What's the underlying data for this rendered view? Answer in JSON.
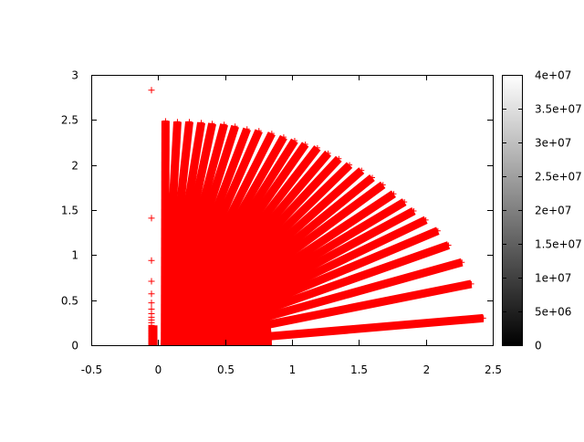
{
  "chart_data": {
    "type": "scatter",
    "title": "",
    "xlabel": "",
    "ylabel": "",
    "xlim": [
      -0.5,
      2.5
    ],
    "ylim": [
      0,
      3
    ],
    "grid": false,
    "marker": "plus",
    "series_color": "#ff0000",
    "x_ticks": [
      "-0.5",
      "0",
      "0.5",
      "1",
      "1.5",
      "2",
      "2.5"
    ],
    "x_tick_values": [
      -0.5,
      0,
      0.5,
      1,
      1.5,
      2,
      2.5
    ],
    "y_ticks": [
      "0",
      "0.5",
      "1",
      "1.5",
      "2",
      "2.5",
      "3"
    ],
    "y_tick_values": [
      0,
      0.5,
      1,
      1.5,
      2,
      2.5,
      3
    ],
    "fan_origin": [
      0.05,
      0
    ],
    "dense_core_radius": 0.85,
    "ray_endpoints": [
      [
        0.055,
        2.49
      ],
      [
        0.144,
        2.48
      ],
      [
        0.233,
        2.48
      ],
      [
        0.322,
        2.47
      ],
      [
        0.404,
        2.46
      ],
      [
        0.493,
        2.45
      ],
      [
        0.575,
        2.43
      ],
      [
        0.664,
        2.4
      ],
      [
        0.753,
        2.38
      ],
      [
        0.849,
        2.35
      ],
      [
        0.938,
        2.31
      ],
      [
        1.02,
        2.27
      ],
      [
        1.1,
        2.23
      ],
      [
        1.19,
        2.19
      ],
      [
        1.27,
        2.13
      ],
      [
        1.35,
        2.07
      ],
      [
        1.43,
        2.0
      ],
      [
        1.52,
        1.94
      ],
      [
        1.6,
        1.86
      ],
      [
        1.68,
        1.78
      ],
      [
        1.76,
        1.68
      ],
      [
        1.84,
        1.59
      ],
      [
        1.91,
        1.49
      ],
      [
        2.0,
        1.39
      ],
      [
        2.09,
        1.27
      ],
      [
        2.17,
        1.11
      ],
      [
        2.27,
        0.92
      ],
      [
        2.34,
        0.68
      ],
      [
        2.43,
        0.3
      ]
    ],
    "isolated_points": [
      [
        -0.05,
        2.83
      ],
      [
        -0.05,
        1.41
      ],
      [
        -0.05,
        0.94
      ],
      [
        -0.05,
        0.71
      ],
      [
        -0.05,
        0.57
      ],
      [
        -0.05,
        0.47
      ],
      [
        -0.05,
        0.4
      ],
      [
        -0.05,
        0.35
      ],
      [
        -0.05,
        0.31
      ],
      [
        -0.05,
        0.28
      ],
      [
        -0.05,
        0.25
      ],
      [
        -0.05,
        0.22
      ],
      [
        -0.05,
        0.19
      ],
      [
        -0.05,
        0.16
      ],
      [
        -0.05,
        0.13
      ],
      [
        -0.05,
        0.1
      ],
      [
        -0.05,
        0.07
      ],
      [
        -0.05,
        0.04
      ],
      [
        -0.05,
        0.02
      ]
    ],
    "colorbar": {
      "range": [
        0,
        40000000
      ],
      "gradient": [
        "#000000",
        "#ffffff"
      ],
      "ticks": [
        "0",
        "5e+06",
        "1e+07",
        "1.5e+07",
        "2e+07",
        "2.5e+07",
        "3e+07",
        "3.5e+07",
        "4e+07"
      ],
      "tick_values": [
        0,
        5000000,
        10000000,
        15000000,
        20000000,
        25000000,
        30000000,
        35000000,
        40000000
      ]
    }
  }
}
